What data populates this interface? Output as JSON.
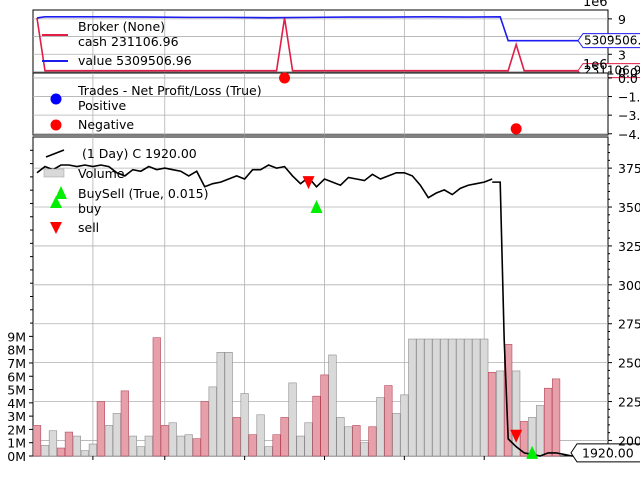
{
  "chart_data": [
    {
      "panel": "broker",
      "type": "line",
      "scale_exponent_label": "1e6",
      "scale_exponent_label_bottom": "1e6",
      "ylim": [
        0,
        10.5
      ],
      "y_ticks": [
        0,
        3,
        6,
        9
      ],
      "y_tick_labels": [
        "0.0",
        "3",
        "",
        "9"
      ],
      "legend_title": "Broker (None)",
      "legend_placement": "top-left",
      "grid": true,
      "series": [
        {
          "name": "cash 231106.96",
          "color": "#e11d48",
          "x": [
            1,
            2,
            31,
            32,
            33,
            60,
            61,
            62,
            70
          ],
          "values": [
            9.15,
            0.23,
            0.23,
            9.15,
            0.23,
            0.23,
            4.65,
            0.23,
            0.23
          ],
          "end_label": "231106.96"
        },
        {
          "name": "value 5309506.96",
          "color": "#1d1df0",
          "x": [
            1,
            2,
            10,
            15,
            20,
            25,
            30,
            35,
            40,
            45,
            50,
            55,
            59,
            60,
            61,
            65,
            70
          ],
          "values": [
            9.15,
            9.35,
            9.35,
            9.3,
            9.25,
            9.25,
            9.2,
            9.25,
            9.3,
            9.3,
            9.35,
            9.3,
            9.35,
            5.31,
            5.31,
            5.3,
            5.31
          ],
          "end_label": "5309506.96"
        }
      ]
    },
    {
      "panel": "trades",
      "type": "scatter",
      "ylim": [
        -4.6,
        0.4
      ],
      "y_ticks": [
        0,
        -1.5,
        -3.0,
        -4.5
      ],
      "y_tick_labels": [
        "0.0",
        "−1.5",
        "−3.0",
        "−4.5"
      ],
      "legend_title": "Trades - Net Profit/Loss (True)",
      "legend_placement": "top-left",
      "grid": true,
      "series": [
        {
          "name": "Positive",
          "color": "#0000ff",
          "x": [],
          "values": []
        },
        {
          "name": "Negative",
          "color": "#ff0000",
          "x": [
            32,
            61
          ],
          "values": [
            0,
            -4.1
          ]
        }
      ]
    },
    {
      "panel": "price",
      "type": "line",
      "title": "(1 Day) C 1920.00",
      "ylim": [
        1900,
        3950
      ],
      "y_ticks": [
        2000,
        2250,
        2500,
        2750,
        3000,
        3250,
        3500,
        3750
      ],
      "y_tick_labels": [
        "2000",
        "2250",
        "2500",
        "2750",
        "3000",
        "3250",
        "3500",
        "3750"
      ],
      "last_value_label": "1920.00",
      "grid": true,
      "legend_placement": "top-left",
      "series": [
        {
          "name": "(1 Day) C 1920.00",
          "color": "#000000",
          "x": [
            1,
            2,
            3,
            4,
            5,
            6,
            7,
            8,
            9,
            10,
            11,
            12,
            13,
            14,
            15,
            16,
            17,
            18,
            19,
            20,
            21,
            22,
            23,
            24,
            25,
            26,
            27,
            28,
            29,
            30,
            31,
            32,
            33,
            34,
            35,
            36,
            37,
            38,
            39,
            40,
            41,
            42,
            43,
            44,
            45,
            46,
            47,
            48,
            49,
            50,
            51,
            52,
            53,
            54,
            55,
            56,
            57,
            58,
            59,
            60,
            61,
            62,
            63,
            64,
            65,
            66,
            67,
            68,
            69,
            70,
            71
          ],
          "values": [
            3720,
            3760,
            3740,
            3770,
            3770,
            3760,
            3770,
            3760,
            3770,
            3760,
            3720,
            3700,
            3740,
            3730,
            3760,
            3740,
            3750,
            3740,
            3730,
            3700,
            3730,
            3630,
            3650,
            3660,
            3680,
            3700,
            3680,
            3740,
            3740,
            3770,
            3750,
            3760,
            3700,
            3650,
            3690,
            3630,
            3680,
            3660,
            3640,
            3690,
            3680,
            3670,
            3710,
            3680,
            3700,
            3720,
            3720,
            3700,
            3640,
            3560,
            3590,
            3610,
            3580,
            3620,
            3640,
            3650,
            3660,
            3680,
            3500,
            3620,
            3560,
            3600,
            3590,
            3610,
            3620,
            3620,
            3640,
            3640,
            3610,
            3580,
            3580
          ],
          "tail_x": [
            58,
            59,
            59.5,
            60,
            61,
            62,
            63,
            64,
            65,
            66,
            67,
            68,
            69,
            70,
            71
          ],
          "tail_values": [
            3660,
            3660,
            2650,
            2010,
            1960,
            1920,
            1910,
            1900,
            1920,
            1920,
            1910,
            1900,
            1930,
            1920,
            1920
          ]
        },
        {
          "name": "BuySell (True, 0.015)",
          "type": "markers",
          "buy": {
            "name": "buy",
            "color": "#00ee00",
            "x": [
              4,
              36,
              63
            ],
            "values": [
              3590,
              3500,
              1920
            ]
          },
          "sell": {
            "name": "sell",
            "color": "#ff0000",
            "x": [
              35,
              61
            ],
            "values": [
              3660,
              2030
            ]
          }
        }
      ]
    },
    {
      "panel": "volume",
      "type": "bar",
      "name": "Volume",
      "legend_placement": "top-left",
      "ylim": [
        0,
        24
      ],
      "y_ticks": [
        0,
        1,
        2,
        3,
        4,
        5,
        6,
        7,
        8,
        9
      ],
      "y_tick_labels": [
        "0M",
        "1M",
        "2M",
        "3M",
        "4M",
        "5M",
        "6M",
        "7M",
        "8M",
        "9M"
      ],
      "x": [
        1,
        2,
        3,
        4,
        5,
        6,
        7,
        8,
        9,
        10,
        11,
        12,
        13,
        14,
        15,
        16,
        17,
        18,
        19,
        20,
        21,
        22,
        23,
        24,
        25,
        26,
        27,
        28,
        29,
        30,
        31,
        32,
        33,
        34,
        35,
        36,
        37,
        38,
        39,
        40,
        41,
        42,
        43,
        44,
        45,
        46,
        47,
        48,
        49,
        50,
        51,
        52,
        53,
        54,
        55,
        56,
        57,
        58,
        59,
        60,
        61,
        62,
        63,
        64,
        65,
        66
      ],
      "values": [
        2.3,
        0.8,
        1.9,
        0.6,
        1.8,
        1.5,
        0.4,
        0.9,
        4.1,
        2.3,
        3.2,
        4.9,
        1.5,
        0.7,
        1.5,
        8.9,
        2.3,
        2.5,
        1.5,
        1.6,
        1.3,
        4.1,
        5.2,
        7.8,
        7.8,
        2.9,
        4.7,
        1.6,
        3.1,
        0.7,
        1.6,
        2.9,
        5.5,
        1.5,
        2.5,
        4.5,
        6.1,
        7.6,
        2.9,
        2.2,
        2.3,
        1.0,
        2.2,
        4.4,
        5.3,
        3.2,
        4.6,
        8.8,
        8.8,
        8.8,
        8.8,
        8.8,
        8.8,
        8.8,
        8.8,
        8.8,
        8.8,
        6.3,
        6.4,
        8.4,
        6.4,
        2.6,
        2.9,
        3.8,
        5.1,
        5.8
      ],
      "direction": [
        "down",
        "up",
        "up",
        "down",
        "down",
        "up",
        "up",
        "up",
        "down",
        "up",
        "up",
        "down",
        "up",
        "up",
        "up",
        "down",
        "down",
        "up",
        "up",
        "up",
        "down",
        "down",
        "up",
        "up",
        "up",
        "down",
        "up",
        "down",
        "up",
        "up",
        "down",
        "down",
        "up",
        "up",
        "up",
        "down",
        "down",
        "up",
        "up",
        "up",
        "down",
        "up",
        "down",
        "up",
        "down",
        "up",
        "up",
        "up",
        "up",
        "up",
        "up",
        "up",
        "up",
        "up",
        "up",
        "up",
        "up",
        "down",
        "up",
        "down",
        "up",
        "down",
        "up",
        "up",
        "down",
        "down"
      ],
      "up_color": "#d9d9d9",
      "down_color": "#e7a0aa"
    }
  ]
}
